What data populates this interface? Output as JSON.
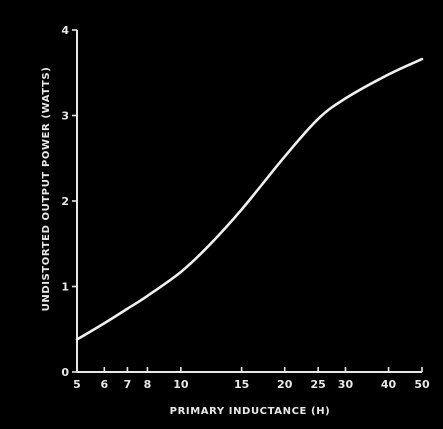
{
  "chart_data": {
    "type": "line",
    "title": "",
    "xlabel": "PRIMARY INDUCTANCE (H)",
    "ylabel": "UNDISTORTED OUTPUT POWER (WATTS)",
    "xscale": "log",
    "xlim": [
      5,
      50
    ],
    "ylim": [
      0,
      4
    ],
    "grid": false,
    "x_ticks": [
      5,
      6,
      7,
      8,
      10,
      15,
      20,
      25,
      30,
      40,
      50
    ],
    "y_ticks": [
      0,
      1,
      2,
      3,
      4
    ],
    "series": [
      {
        "x": [
          5,
          6,
          7,
          8,
          10,
          12,
          15,
          20,
          25,
          30,
          40,
          50
        ],
        "y": [
          0.38,
          0.57,
          0.74,
          0.89,
          1.17,
          1.47,
          1.9,
          2.52,
          2.96,
          3.2,
          3.48,
          3.66
        ]
      }
    ],
    "colors": {
      "background": "#000000",
      "foreground": "#e8e8e8"
    }
  }
}
